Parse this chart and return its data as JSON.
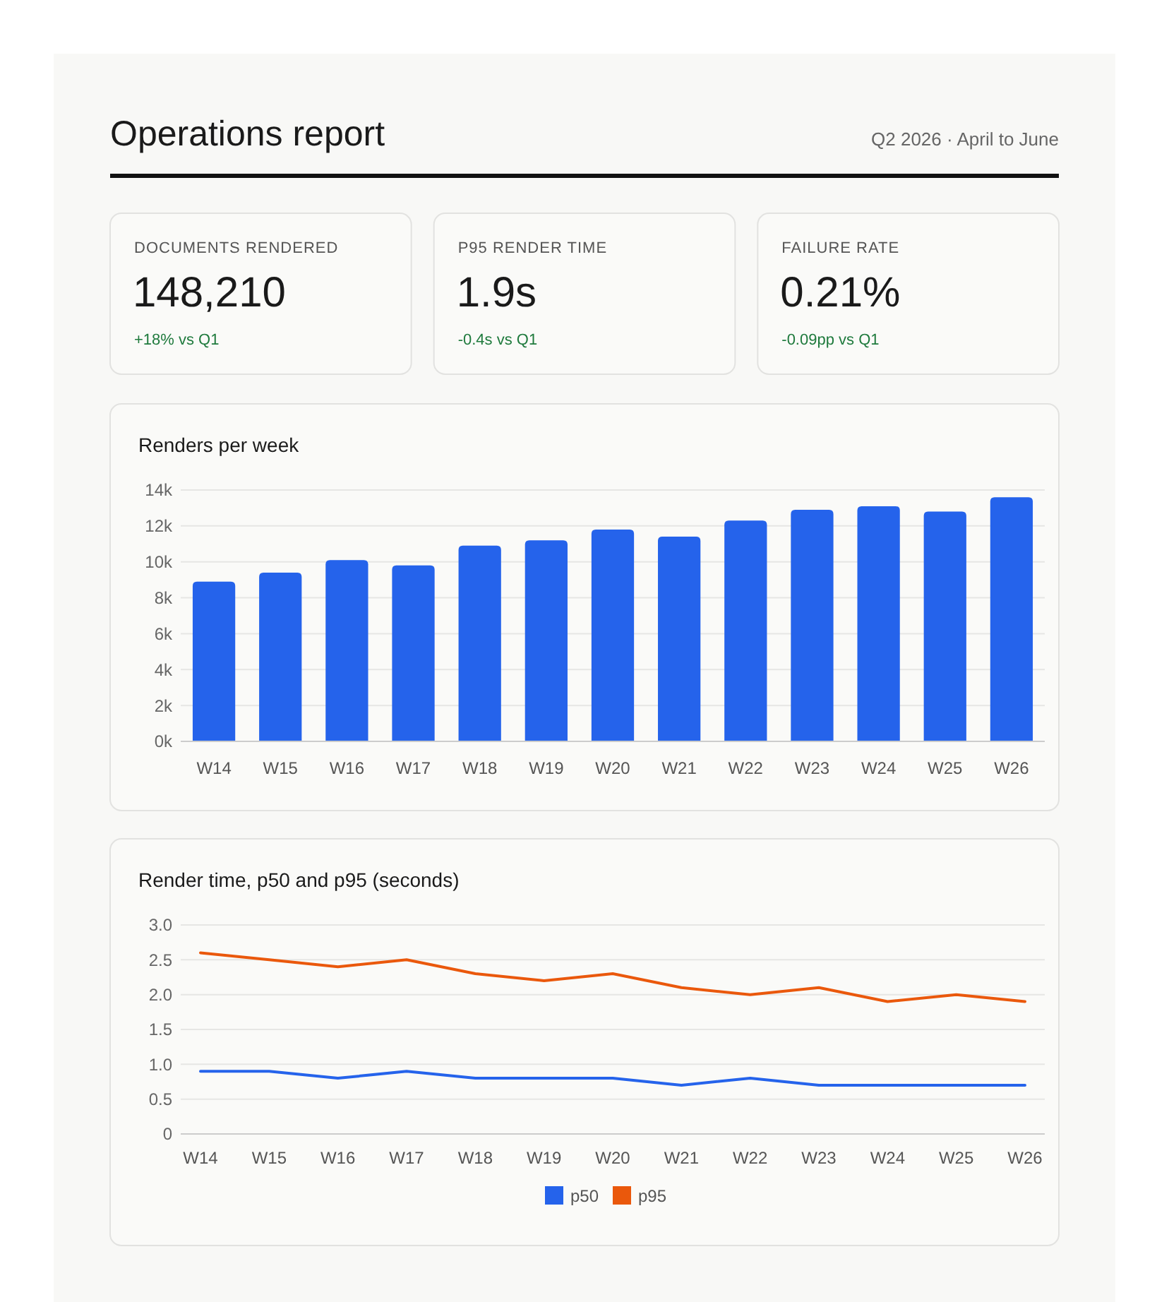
{
  "chart_data": [
    {
      "type": "other",
      "title": "Operations report",
      "subtitle": "Q2 2026 · April to June",
      "annotations": [
        "DOCUMENTS RENDERED",
        "148,210",
        "+18% vs Q1",
        "P95 RENDER TIME",
        "1.9s",
        "-0.4s vs Q1",
        "FAILURE RATE",
        "0.21%",
        "-0.09pp vs Q1"
      ]
    },
    {
      "type": "bar",
      "title": "Renders per week",
      "categories": [
        "W14",
        "W15",
        "W16",
        "W17",
        "W18",
        "W19",
        "W20",
        "W21",
        "W22",
        "W23",
        "W24",
        "W25",
        "W26"
      ],
      "values": [
        8900,
        9400,
        10100,
        9800,
        10900,
        11200,
        11800,
        11400,
        12300,
        12900,
        13100,
        12800,
        13600
      ],
      "color": "#2563eb",
      "ylim": [
        0,
        14000
      ],
      "yticks": [
        {
          "value": 0,
          "label": "0k"
        },
        {
          "value": 2000,
          "label": "2k"
        },
        {
          "value": 4000,
          "label": "4k"
        },
        {
          "value": 6000,
          "label": "6k"
        },
        {
          "value": 8000,
          "label": "8k"
        },
        {
          "value": 10000,
          "label": "10k"
        },
        {
          "value": 12000,
          "label": "12k"
        },
        {
          "value": 14000,
          "label": "14k"
        }
      ],
      "grid": "y"
    },
    {
      "type": "line",
      "title": "Render time, p50 and p95 (seconds)",
      "categories": [
        "W14",
        "W15",
        "W16",
        "W17",
        "W18",
        "W19",
        "W20",
        "W21",
        "W22",
        "W23",
        "W24",
        "W25",
        "W26"
      ],
      "series": [
        {
          "name": "p50",
          "color": "#2563eb",
          "values": [
            0.9,
            0.9,
            0.8,
            0.9,
            0.8,
            0.8,
            0.8,
            0.7,
            0.8,
            0.7,
            0.7,
            0.7,
            0.7
          ]
        },
        {
          "name": "p95",
          "color": "#ea580c",
          "values": [
            2.6,
            2.5,
            2.4,
            2.5,
            2.3,
            2.2,
            2.3,
            2.1,
            2.0,
            2.1,
            1.9,
            2.0,
            1.9
          ]
        }
      ],
      "ylim": [
        0,
        3
      ],
      "yticks": [
        0,
        0.5,
        {
          "value": 1,
          "label": "1.0"
        },
        1.5,
        {
          "value": 2,
          "label": "2.0"
        },
        2.5,
        {
          "value": 3,
          "label": "3.0"
        }
      ],
      "grid": "y",
      "legend": "bottom",
      "marker": "none",
      "line_style": "solid"
    }
  ]
}
